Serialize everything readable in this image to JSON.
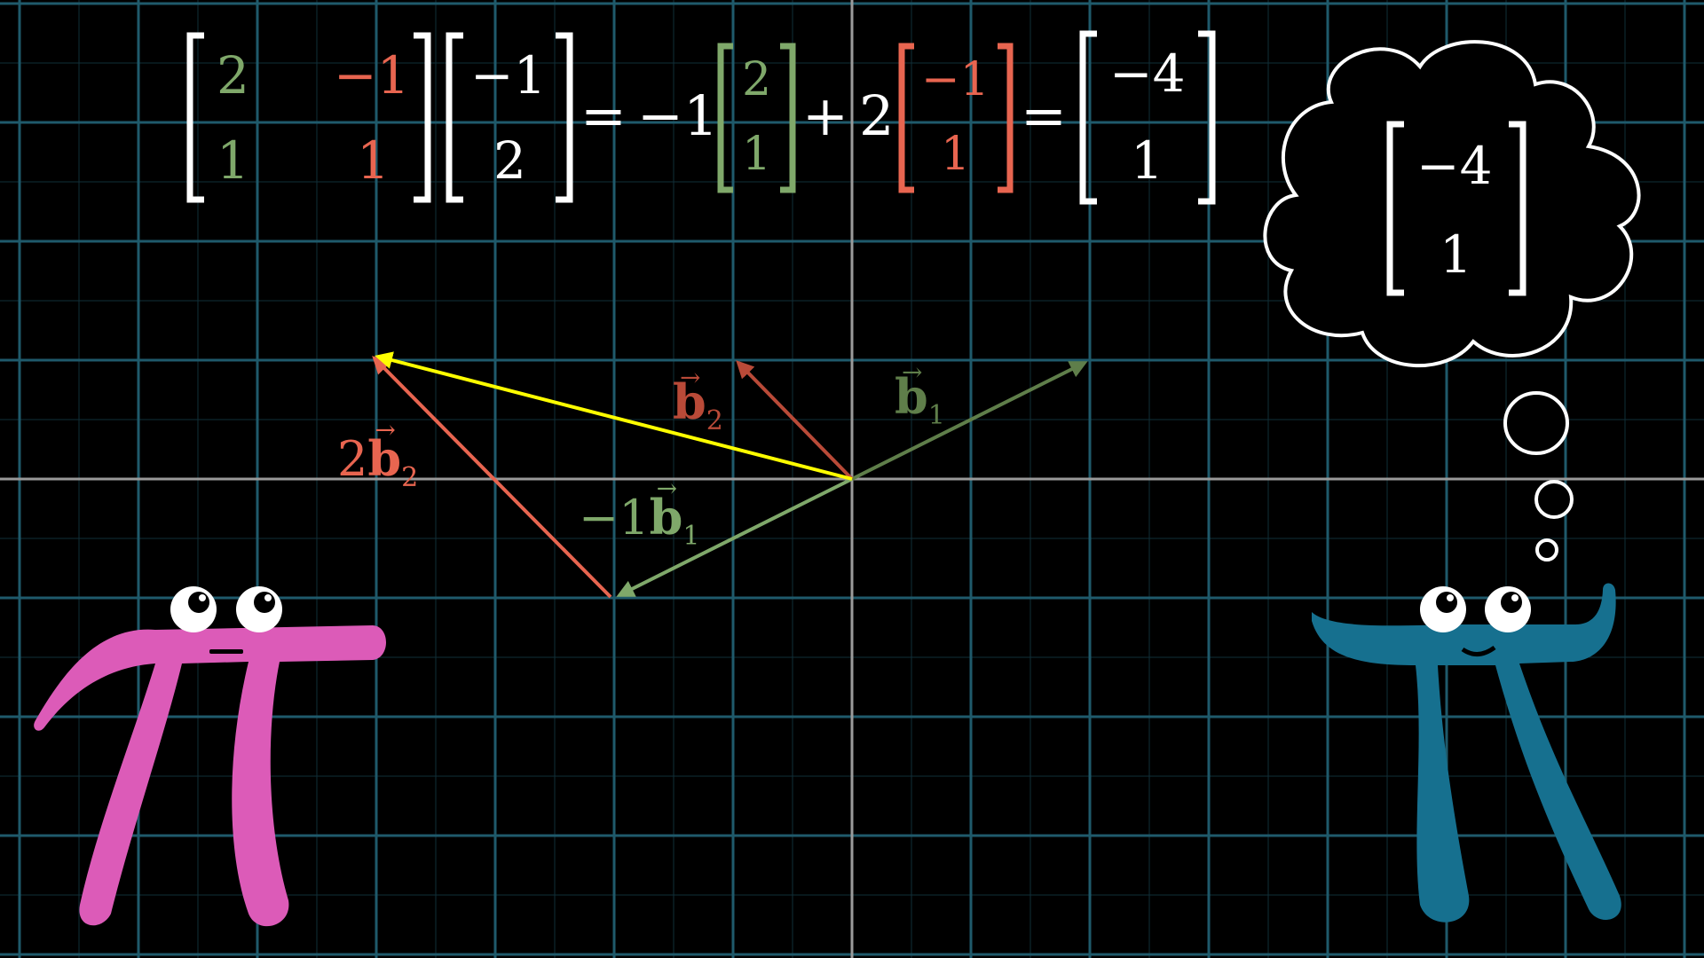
{
  "colors": {
    "background": "#000000",
    "grid_major": "#1f5a6b",
    "grid_minor": "#112f38",
    "axis": "#9a9a9a",
    "green": "#7fa86a",
    "green_dark": "#5f7e4a",
    "red": "#e86550",
    "red_dark": "#b94a38",
    "yellow": "#ffff00",
    "white": "#ffffff",
    "pink": "#dc5bb8",
    "blue": "#16708f"
  },
  "equation": {
    "matrix": {
      "a": "2",
      "b": "−1",
      "c": "1",
      "d": "1"
    },
    "vector": {
      "x": "−1",
      "y": "2"
    },
    "equals1": "=",
    "coef1": "−1",
    "col1": {
      "top": "2",
      "bottom": "1"
    },
    "plus": "+",
    "coef2": "2",
    "col2": {
      "top": "−1",
      "bottom": "1"
    },
    "equals2": "=",
    "result": {
      "top": "−4",
      "bottom": "1"
    }
  },
  "thought": {
    "top": "−4",
    "bottom": "1"
  },
  "labels": {
    "b1": {
      "base": "b",
      "sub": "1",
      "arrow": "→"
    },
    "b2": {
      "base": "b",
      "sub": "2",
      "arrow": "→"
    },
    "two_b2": {
      "coef": "2",
      "base": "b",
      "sub": "2",
      "arrow": "→"
    },
    "neg_b1": {
      "coef": "−1",
      "base": "b",
      "sub": "1",
      "arrow": "→"
    }
  },
  "icons": {
    "left_character": "pi-creature-pink-icon",
    "right_character": "pi-creature-blue-icon",
    "thought_bubble": "thought-bubble-icon"
  }
}
